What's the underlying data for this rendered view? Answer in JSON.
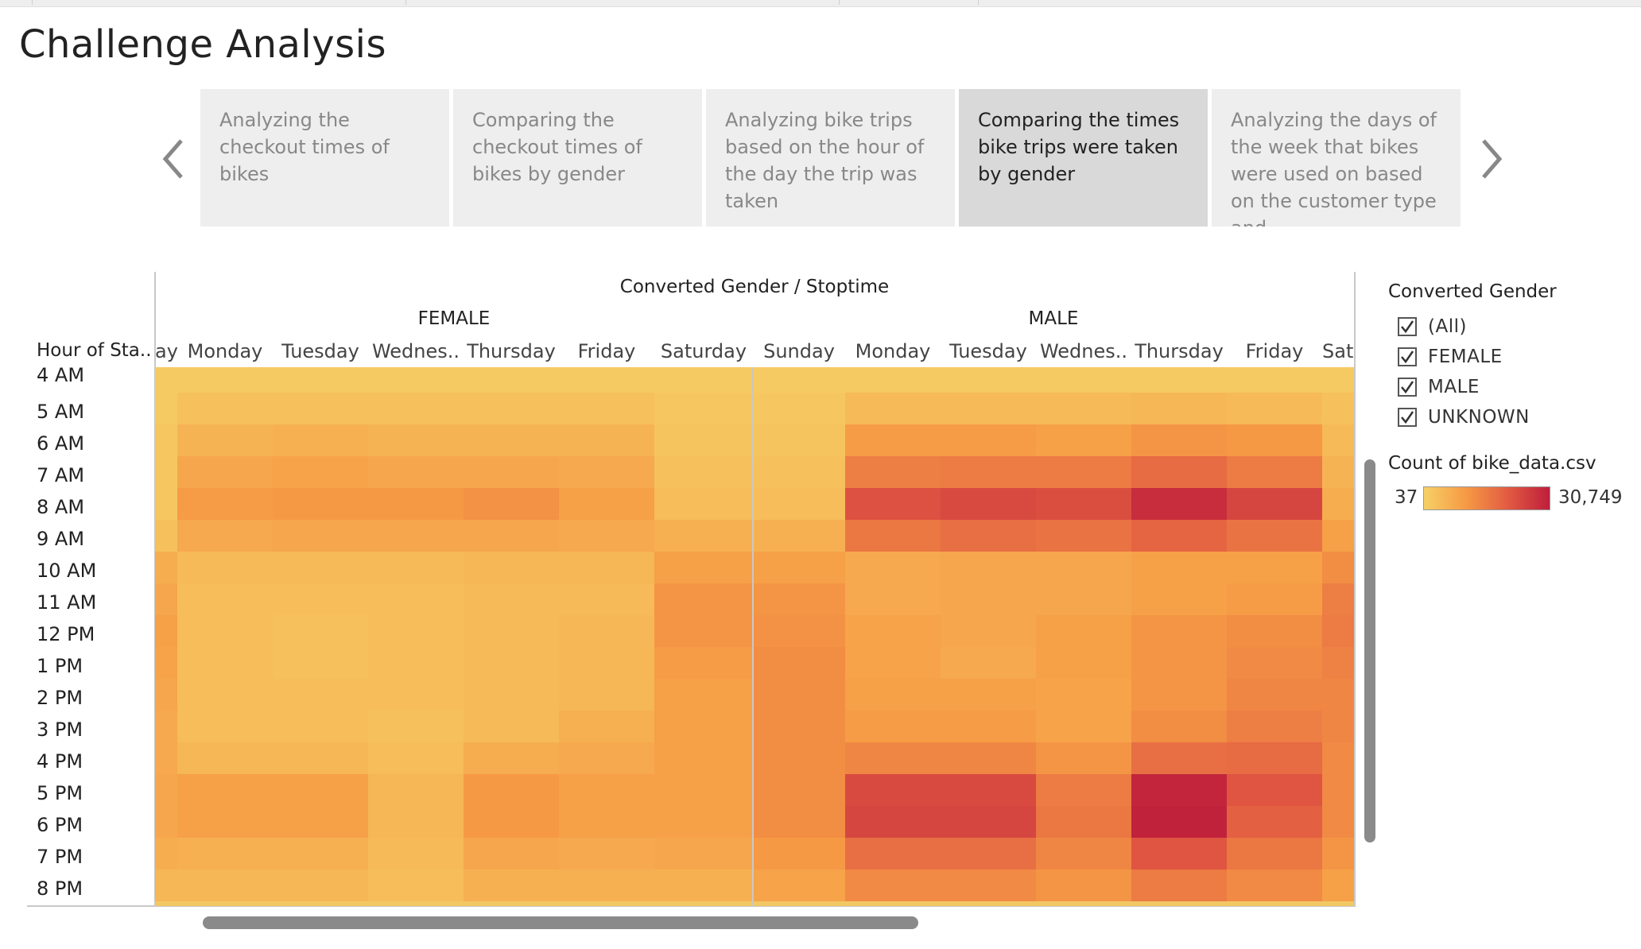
{
  "page": {
    "title": "Challenge Analysis"
  },
  "story_points": [
    {
      "text": "Analyzing the checkout times of bikes",
      "active": false
    },
    {
      "text": "Comparing the checkout times of bikes by gender",
      "active": false
    },
    {
      "text": "Analyzing bike trips based on the hour of the day the trip was taken",
      "active": false
    },
    {
      "text": "Comparing the times bike trips were taken by gender",
      "active": true
    },
    {
      "text": "Analyzing the days of the week that bikes were used on based on the customer type and",
      "active": false
    }
  ],
  "icons": {
    "prev": "chevron-left-icon",
    "next": "chevron-right-icon",
    "check": "checkmark-icon"
  },
  "viz": {
    "header": "Converted Gender / Stoptime",
    "groups": [
      "FEMALE",
      "MALE"
    ],
    "row_header": "Hour of Sta..",
    "day_labels": [
      "ay",
      "Monday",
      "Tuesday",
      "Wednes..",
      "Thursday",
      "Friday",
      "Saturday",
      "Sunday",
      "Monday",
      "Tuesday",
      "Wednes..",
      "Thursday",
      "Friday",
      "Sat"
    ],
    "hour_labels": [
      "4 AM",
      "5 AM",
      "6 AM",
      "7 AM",
      "8 AM",
      "9 AM",
      "10 AM",
      "11 AM",
      "12 PM",
      "1 PM",
      "2 PM",
      "3 PM",
      "4 PM",
      "5 PM",
      "6 PM",
      "7 PM",
      "8 PM"
    ]
  },
  "chart_data": {
    "type": "heatmap",
    "x_header": "Converted Gender / Stoptime",
    "y_header": "Hour of Sta..",
    "columns": [
      "FEMALE ay",
      "FEMALE Monday",
      "FEMALE Tuesday",
      "FEMALE Wednes..",
      "FEMALE Thursday",
      "FEMALE Friday",
      "FEMALE Saturday",
      "MALE Sunday",
      "MALE Monday",
      "MALE Tuesday",
      "MALE Wednes..",
      "MALE Thursday",
      "MALE Friday",
      "MALE Sat"
    ],
    "rows": [
      "4 AM",
      "5 AM",
      "6 AM",
      "7 AM",
      "8 AM",
      "9 AM",
      "10 AM",
      "11 AM",
      "12 PM",
      "1 PM",
      "2 PM",
      "3 PM",
      "4 PM",
      "5 PM",
      "6 PM",
      "7 PM",
      "8 PM"
    ],
    "intensity_scale": {
      "min": 37,
      "max": 30749
    },
    "intensity": [
      [
        0.04,
        0.04,
        0.04,
        0.04,
        0.04,
        0.04,
        0.04,
        0.04,
        0.04,
        0.04,
        0.04,
        0.04,
        0.04,
        0.04
      ],
      [
        0.04,
        0.1,
        0.1,
        0.1,
        0.1,
        0.1,
        0.06,
        0.06,
        0.14,
        0.14,
        0.14,
        0.16,
        0.14,
        0.1
      ],
      [
        0.06,
        0.18,
        0.2,
        0.18,
        0.18,
        0.18,
        0.08,
        0.08,
        0.32,
        0.32,
        0.3,
        0.36,
        0.34,
        0.14
      ],
      [
        0.06,
        0.26,
        0.28,
        0.26,
        0.26,
        0.24,
        0.1,
        0.1,
        0.48,
        0.5,
        0.5,
        0.58,
        0.5,
        0.18
      ],
      [
        0.06,
        0.32,
        0.34,
        0.34,
        0.38,
        0.3,
        0.12,
        0.12,
        0.72,
        0.76,
        0.74,
        0.92,
        0.78,
        0.22
      ],
      [
        0.1,
        0.24,
        0.26,
        0.26,
        0.26,
        0.24,
        0.2,
        0.2,
        0.52,
        0.56,
        0.54,
        0.62,
        0.54,
        0.3
      ],
      [
        0.22,
        0.14,
        0.14,
        0.14,
        0.16,
        0.16,
        0.3,
        0.3,
        0.24,
        0.26,
        0.26,
        0.3,
        0.3,
        0.4
      ],
      [
        0.26,
        0.12,
        0.12,
        0.12,
        0.14,
        0.14,
        0.36,
        0.36,
        0.24,
        0.26,
        0.26,
        0.3,
        0.32,
        0.48
      ],
      [
        0.3,
        0.12,
        0.1,
        0.12,
        0.14,
        0.16,
        0.36,
        0.38,
        0.28,
        0.26,
        0.3,
        0.36,
        0.4,
        0.5
      ],
      [
        0.28,
        0.12,
        0.1,
        0.12,
        0.14,
        0.16,
        0.32,
        0.4,
        0.28,
        0.24,
        0.3,
        0.36,
        0.42,
        0.46
      ],
      [
        0.26,
        0.12,
        0.12,
        0.12,
        0.14,
        0.16,
        0.3,
        0.4,
        0.3,
        0.3,
        0.28,
        0.36,
        0.44,
        0.44
      ],
      [
        0.24,
        0.12,
        0.12,
        0.1,
        0.14,
        0.2,
        0.3,
        0.4,
        0.32,
        0.32,
        0.28,
        0.4,
        0.48,
        0.44
      ],
      [
        0.24,
        0.16,
        0.16,
        0.12,
        0.22,
        0.24,
        0.3,
        0.4,
        0.44,
        0.44,
        0.36,
        0.56,
        0.58,
        0.42
      ],
      [
        0.26,
        0.3,
        0.3,
        0.16,
        0.34,
        0.3,
        0.3,
        0.4,
        0.76,
        0.76,
        0.5,
        0.96,
        0.7,
        0.42
      ],
      [
        0.26,
        0.3,
        0.3,
        0.16,
        0.34,
        0.3,
        0.3,
        0.4,
        0.78,
        0.78,
        0.52,
        0.98,
        0.64,
        0.42
      ],
      [
        0.22,
        0.2,
        0.2,
        0.14,
        0.26,
        0.24,
        0.26,
        0.34,
        0.56,
        0.56,
        0.44,
        0.7,
        0.52,
        0.36
      ],
      [
        0.16,
        0.16,
        0.16,
        0.12,
        0.2,
        0.2,
        0.2,
        0.28,
        0.42,
        0.42,
        0.36,
        0.5,
        0.42,
        0.3
      ]
    ]
  },
  "legend": {
    "filter_title": "Converted Gender",
    "filters": [
      "(All)",
      "FEMALE",
      "MALE",
      "UNKNOWN"
    ],
    "color_title": "Count of bike_data.csv",
    "color_min": "37",
    "color_max": "30,749",
    "ramp_colors": [
      "#f6d166",
      "#f69a45",
      "#e25b42",
      "#bf1e3b"
    ]
  }
}
